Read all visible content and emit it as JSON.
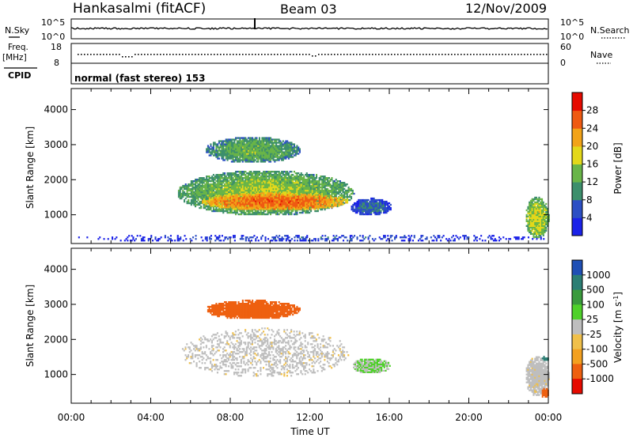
{
  "header": {
    "station": "Hankasalmi (fitACF)",
    "beam": "Beam 03",
    "date": "12/Nov/2009"
  },
  "status_panel": {
    "nsky_label": "N.Sky",
    "nsky_ticks": [
      "10^5",
      "10^0"
    ],
    "nsearch_label": "N.Search",
    "nsearch_ticks": [
      "10^5",
      "10^0"
    ],
    "freq_label_1": "Freq.",
    "freq_label_2": "[MHz]",
    "freq_ticks": [
      "18",
      "8"
    ],
    "nave_label": "Nave",
    "nave_ticks": [
      "60",
      "0"
    ],
    "cpid_label": "CPID",
    "cpid_value": "normal (fast stereo) 153"
  },
  "chart_data": [
    {
      "type": "heatmap",
      "parameter": "Power",
      "colorbar_label": "Power [dB]",
      "colorbar_ticks": [
        4,
        8,
        12,
        16,
        20,
        24,
        28
      ],
      "colorbar_colors": [
        "#1b22e8",
        "#2c4fc4",
        "#3d8f6c",
        "#69b548",
        "#e3d81a",
        "#f2a318",
        "#ef5a12",
        "#e60a00"
      ],
      "ylabel": "Slant Range [km]",
      "yticks": [
        1000,
        2000,
        3000,
        4000
      ],
      "ylim": [
        180,
        4600
      ],
      "xlim_hours": [
        0,
        24
      ],
      "echo_regions": [
        {
          "t": [
            0,
            24
          ],
          "r": [
            200,
            420
          ],
          "power_db": 6
        },
        {
          "t": [
            5.3,
            14.2
          ],
          "r": [
            950,
            2250
          ],
          "power_db": 16
        },
        {
          "t": [
            6.5,
            14
          ],
          "r": [
            1100,
            1600
          ],
          "power_db": 26
        },
        {
          "t": [
            6.7,
            11.5
          ],
          "r": [
            2450,
            3200
          ],
          "power_db": 14
        },
        {
          "t": [
            14,
            16.1
          ],
          "r": [
            950,
            1450
          ],
          "power_db": 9
        },
        {
          "t": [
            22.8,
            24
          ],
          "r": [
            300,
            1500
          ],
          "power_db": 18
        }
      ]
    },
    {
      "type": "heatmap",
      "parameter": "Velocity",
      "colorbar_label": "Velocity [m s^-1]",
      "colorbar_ticks": [
        1000,
        500,
        100,
        25,
        -25,
        -100,
        -500,
        -1000
      ],
      "colorbar_colors": [
        "#1f4fb5",
        "#2b7e74",
        "#3a9a3c",
        "#4fd12a",
        "#bebebe",
        "#f0c04a",
        "#f3a020",
        "#ee6010",
        "#e60a00"
      ],
      "ylabel": "Slant Range [km]",
      "yticks": [
        1000,
        2000,
        3000,
        4000
      ],
      "ylim": [
        180,
        4600
      ],
      "xlabel": "Time UT",
      "xticks": [
        "00:00",
        "04:00",
        "08:00",
        "12:00",
        "16:00",
        "20:00",
        "00:00"
      ],
      "xlim_hours": [
        0,
        24
      ],
      "echo_regions": [
        {
          "t": [
            5.5,
            14
          ],
          "r": [
            900,
            2300
          ],
          "velocity": 0
        },
        {
          "t": [
            6.7,
            11.5
          ],
          "r": [
            2550,
            3100
          ],
          "velocity": -200
        },
        {
          "t": [
            14.1,
            16
          ],
          "r": [
            1000,
            1450
          ],
          "velocity": 60
        },
        {
          "t": [
            22.8,
            24
          ],
          "r": [
            350,
            1500
          ],
          "velocity": 0
        },
        {
          "t": [
            23.6,
            24
          ],
          "r": [
            1350,
            1500
          ],
          "velocity": 400
        },
        {
          "t": [
            23.6,
            24
          ],
          "r": [
            300,
            600
          ],
          "velocity": -200
        }
      ]
    }
  ]
}
